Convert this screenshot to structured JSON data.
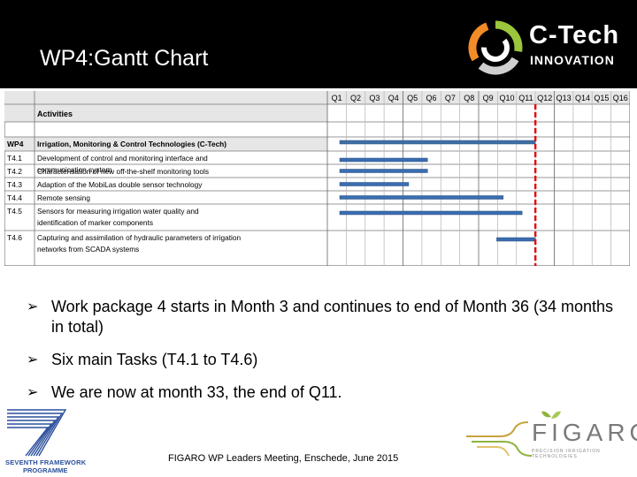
{
  "header": {
    "title": "WP4:Gantt Chart"
  },
  "logo": {
    "line1": "C-Tech",
    "line2": "INNOVATION"
  },
  "gantt": {
    "quarters": [
      "Q1",
      "Q2",
      "Q3",
      "Q4",
      "Q5",
      "Q6",
      "Q7",
      "Q8",
      "Q9",
      "Q10",
      "Q11",
      "Q12",
      "Q13",
      "Q14",
      "Q15",
      "Q16"
    ],
    "activities_header": "Activities",
    "rows": [
      {
        "id": "WP4",
        "label": "Irrigation, Monitoring & Control Technologies (C-Tech)",
        "start_q": 1,
        "end_q": 12,
        "bar_color": "#3f6fa3"
      },
      {
        "id": "T4.1",
        "label": "Development of control and monitoring interface and communication system",
        "start_q": 1,
        "end_q": 6.3,
        "bar_color": "#3a6db0"
      },
      {
        "id": "T4.2",
        "label": "Characterisation of new off-the-shelf monitoring tools",
        "start_q": 1,
        "end_q": 6.3,
        "bar_color": "#3a6db0"
      },
      {
        "id": "T4.3",
        "label": "Adaption of the MobiLas double sensor technology",
        "start_q": 1,
        "end_q": 5.3,
        "bar_color": "#3a6db0"
      },
      {
        "id": "T4.4",
        "label": "Remote sensing",
        "start_q": 1,
        "end_q": 10.3,
        "bar_color": "#3a6db0"
      },
      {
        "id": "T4.5",
        "label": "Sensors for measuring irrigation water quality and identification of marker components",
        "start_q": 1,
        "end_q": 11.3,
        "bar_color": "#3a6db0"
      },
      {
        "id": "T4.6",
        "label": "Capturing and assimilation of hydraulic parameters of irrigation networks from SCADA systems",
        "start_q": 9.3,
        "end_q": 12,
        "bar_color": "#3a6db0"
      }
    ],
    "current_quarter": 11
  },
  "bullets": [
    "Work package 4 starts in Month 3 and continues to end of Month 36 (34 months in total)",
    "Six main Tasks (T4.1 to T4.6)",
    "We are now at month 33, the end of Q11."
  ],
  "footer": {
    "text": "FIGARO WP Leaders Meeting, Enschede, June 2015"
  },
  "fp7": {
    "line1": "SEVENTH FRAMEWORK",
    "line2": "PROGRAMME"
  },
  "figaro": {
    "word": "FIGARO",
    "tagline": "PRECISION IRRIGATION TECHNOLOGIES"
  }
}
